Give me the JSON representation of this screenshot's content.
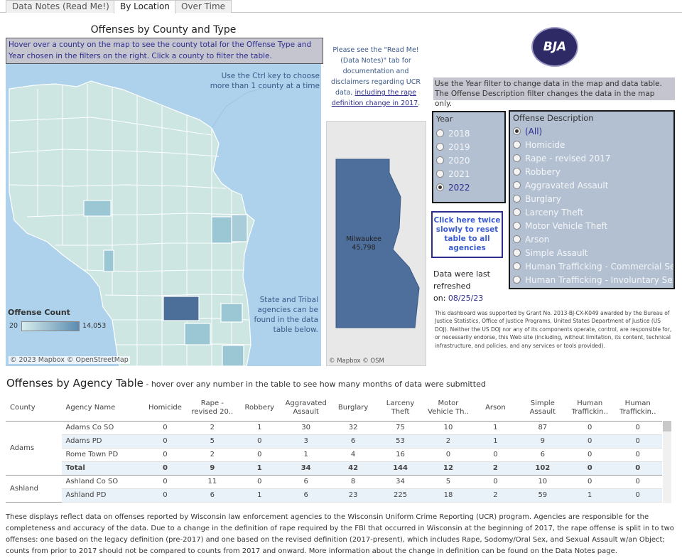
{
  "tabs": [
    {
      "label": "Data Notes (Read Me!)"
    },
    {
      "label": "By Location"
    },
    {
      "label": "Over Time"
    }
  ],
  "map": {
    "title": "Offenses by County and Type",
    "instructions": "Hover over a county on the map to see the county total for the Offense Type and Year chosen in the filters on the right. Click a county to filter the table.",
    "ctrl_note": "Use the Ctrl key to choose more than 1 county at a time",
    "tribal_note": "State and Tribal agencies can be found in the data table below.",
    "legend": {
      "title": "Offense Count",
      "min": "20",
      "max": "14,053"
    },
    "attribution": "© 2023 Mapbox  © OpenStreetMap",
    "colors": {
      "water": "#aed2ec",
      "county_low": "#cde6e2",
      "county_mid": "#9bc6d4",
      "county_high": "#4c6f9a",
      "border": "#ffffff"
    }
  },
  "readme_note": {
    "text": "Please see the \"Read Me! (Data Notes)\" tab for documentation and disclaimers regarding UCR data, ",
    "link": "including the rape definition change in 2017",
    "end": "."
  },
  "milwaukee": {
    "name": "Milwaukee",
    "value": "45,798",
    "attribution": "© Mapbox  © OSM",
    "color": "#4e6f9c"
  },
  "logo": {
    "text": "BJA"
  },
  "filter_note": "Use the Year filter to change data in the map and data table. The Offense Description filter changes the data in the map only.",
  "year_filter": {
    "title": "Year",
    "options": [
      "2018",
      "2019",
      "2020",
      "2021",
      "2022"
    ],
    "selected": "2022"
  },
  "offense_filter": {
    "title": "Offense Description",
    "options": [
      "(All)",
      "Homicide",
      "Rape - revised 2017",
      "Robbery",
      "Aggravated Assault",
      "Burglary",
      "Larceny Theft",
      "Motor Vehicle Theft",
      "Arson",
      "Simple Assault",
      "Human Trafficking - Commercial Sex",
      "Human Trafficking - Involuntary Serv..."
    ],
    "selected": "(All)"
  },
  "reset_button": {
    "label": "Click here twice slowly to reset table to all agencies"
  },
  "refresh": {
    "label": "Data were last refreshed",
    "prefix": "on: ",
    "date": "08/25/23"
  },
  "grant_note": "This dashboard was supported by Grant No. 2013-BJ-CX-K049 awarded by the Bureau of Justice Statistics, Office of Justice Programs, United States Department of Justice (US DOJ). Neither the US DOJ nor any of its components operate, control, are responsible for, or necessarily endorse, this Web site (including, without limitation, its content, technical infrastructure, and policies, and any services or tools provided).",
  "table": {
    "title": "Offenses by Agency Table",
    "subtitle": " - hover over any number in the table to see how many months of data were submitted",
    "columns": [
      "County",
      "Agency Name",
      "Homicide",
      "Rape - revised 20..",
      "Robbery",
      "Aggravated Assault",
      "Burglary",
      "Larceny Theft",
      "Motor Vehicle Th..",
      "Arson",
      "Simple Assault",
      "Human Traffickin..",
      "Human Traffickin.."
    ],
    "groups": [
      {
        "county": "Adams",
        "rows": [
          {
            "agency": "Adams Co SO",
            "values": [
              "0",
              "2",
              "1",
              "30",
              "32",
              "75",
              "10",
              "1",
              "87",
              "0",
              "0"
            ]
          },
          {
            "agency": "Adams PD",
            "values": [
              "0",
              "5",
              "0",
              "3",
              "6",
              "53",
              "2",
              "1",
              "9",
              "0",
              "0"
            ]
          },
          {
            "agency": "Rome Town PD",
            "values": [
              "0",
              "2",
              "0",
              "1",
              "4",
              "16",
              "0",
              "0",
              "6",
              "0",
              "0"
            ]
          },
          {
            "agency": "Total",
            "values": [
              "0",
              "9",
              "1",
              "34",
              "42",
              "144",
              "12",
              "2",
              "102",
              "0",
              "0"
            ]
          }
        ]
      },
      {
        "county": "Ashland",
        "rows": [
          {
            "agency": "Ashland Co SO",
            "values": [
              "0",
              "11",
              "0",
              "6",
              "8",
              "34",
              "5",
              "0",
              "10",
              "0",
              "0"
            ]
          },
          {
            "agency": "Ashland PD",
            "values": [
              "0",
              "6",
              "1",
              "6",
              "23",
              "225",
              "18",
              "2",
              "59",
              "1",
              "0"
            ]
          }
        ]
      }
    ]
  },
  "footer": "These displays reflect data on offenses reported by Wisconsin law enforcement agencies to the Wisconsin Uniform Crime Reporting (UCR) program. Agencies are responsible for the completeness and accuracy of the data. Due to a change in the definition of rape required by the FBI that occurred in Wisconsin at the beginning of 2017, the rape offense is split in to two offenses: one based on the legacy definition (pre-2017) and one based on the revised definition (2017-present), which includes Rape, Sodomy/Oral Sex, and Sexual Assault w/an Object; counts from prior to 2017 should not be compared to counts from 2017 and onward. More information about the change in definition can be found on the Data Notes page."
}
